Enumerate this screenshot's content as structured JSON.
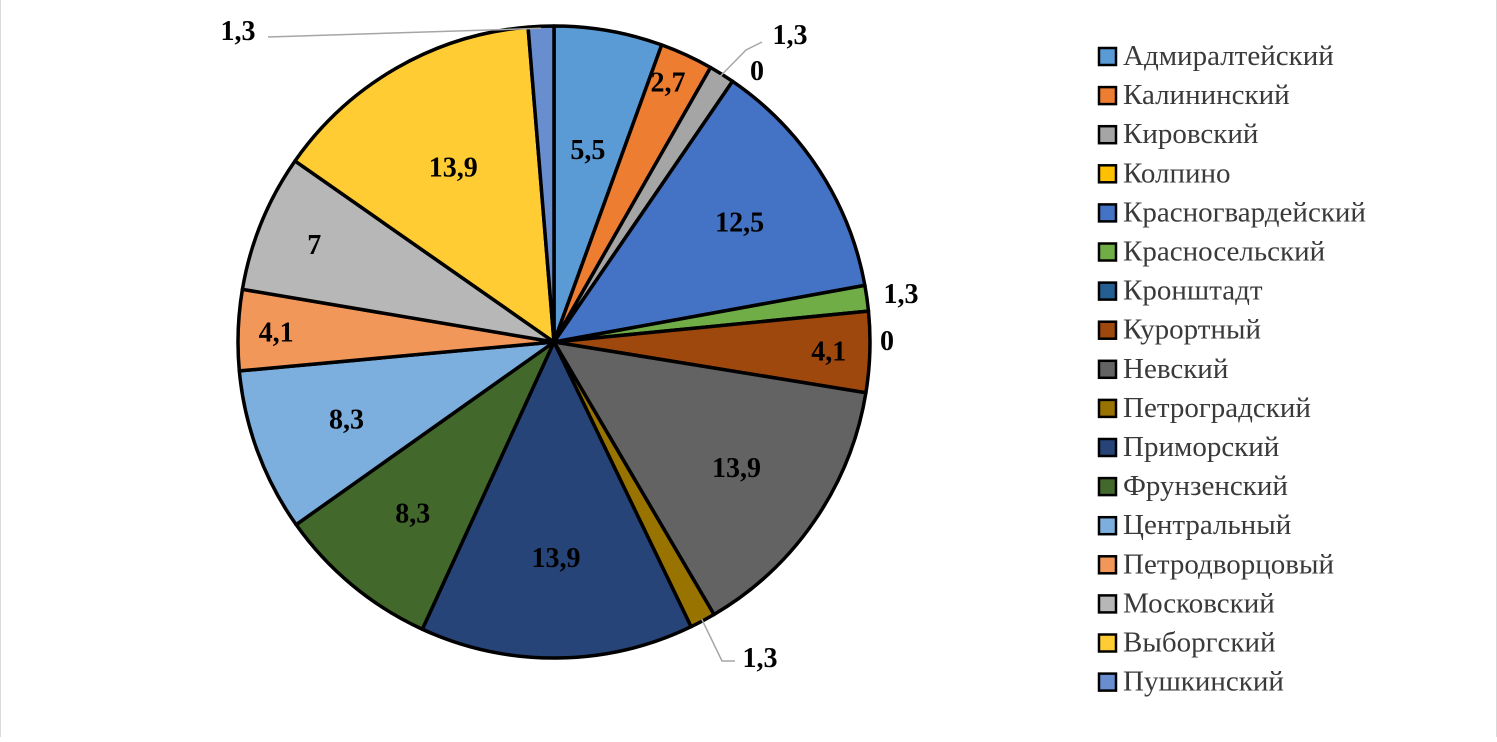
{
  "chart_data": {
    "type": "pie",
    "categories": [
      "Адмиралтейский",
      "Калининский",
      "Кировский",
      "Колпино",
      "Красногвардейский",
      "Красносельский",
      "Кронштадт",
      "Курортный",
      "Невский",
      "Петроградский",
      "Приморский",
      "Фрунзенский",
      "Центральный",
      "Петродворцовый",
      "Московский",
      "Выборгский",
      "Пушкинский"
    ],
    "values": [
      5.5,
      2.7,
      1.3,
      0,
      12.5,
      1.3,
      0,
      4.1,
      13.9,
      1.3,
      13.9,
      8.3,
      8.3,
      4.1,
      7,
      13.9,
      1.3
    ],
    "data_labels": [
      "5,5",
      "2,7",
      "1,3",
      "0",
      "12,5",
      "1,3",
      "0",
      "4,1",
      "13,9",
      "1,3",
      "13,9",
      "8,3",
      "8,3",
      "4,1",
      "7",
      "13,9",
      "1,3"
    ],
    "colors": [
      "#5B9BD5",
      "#ED7D31",
      "#A5A5A5",
      "#FFC000",
      "#4472C4",
      "#70AD47",
      "#255E91",
      "#9E480E",
      "#636363",
      "#997300",
      "#264478",
      "#43682B",
      "#7CAFDD",
      "#F1975A",
      "#B7B7B7",
      "#FFCD33",
      "#698ED0"
    ],
    "legend_position": "right"
  }
}
